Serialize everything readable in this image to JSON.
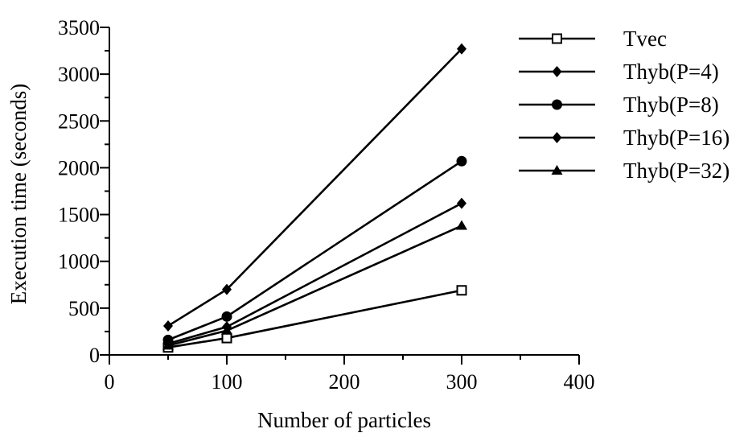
{
  "chart_data": {
    "type": "line",
    "title": "",
    "xlabel": "Number of particles",
    "ylabel": "Execution time (seconds)",
    "xlim": [
      0,
      400
    ],
    "ylim": [
      0,
      3500
    ],
    "x_ticks": [
      0,
      100,
      200,
      300,
      400
    ],
    "y_ticks": [
      0,
      500,
      1000,
      1500,
      2000,
      2500,
      3000,
      3500
    ],
    "grid": false,
    "legend_position": "top-right",
    "x": [
      50,
      100,
      300
    ],
    "series": [
      {
        "name": "Tvec",
        "marker": "open-square",
        "values": [
          80,
          180,
          690
        ]
      },
      {
        "name": "Thyb(P=4)",
        "marker": "diamond",
        "values": [
          310,
          700,
          3270
        ]
      },
      {
        "name": "Thyb(P=8)",
        "marker": "circle",
        "values": [
          160,
          410,
          2070
        ]
      },
      {
        "name": "Thyb(P=16)",
        "marker": "diamond",
        "values": [
          120,
          300,
          1620
        ]
      },
      {
        "name": "Thyb(P=32)",
        "marker": "triangle",
        "values": [
          100,
          260,
          1380
        ]
      }
    ]
  }
}
